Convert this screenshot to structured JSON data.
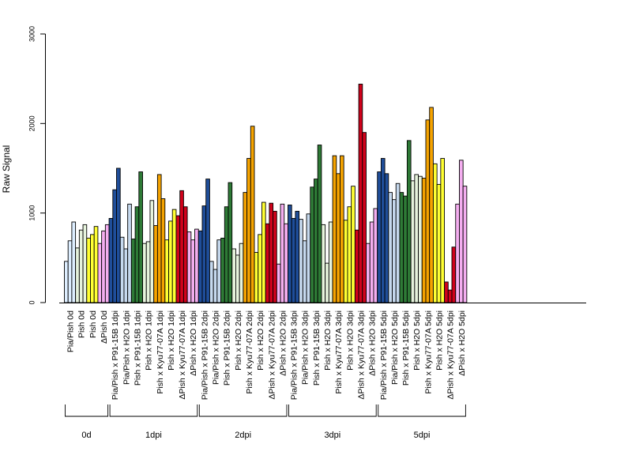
{
  "chart_data": {
    "type": "bar",
    "ylabel": "Raw Signal",
    "ylim": [
      0,
      3000
    ],
    "yticks": [
      0,
      1000,
      2000,
      3000
    ],
    "grid": false,
    "legend": "none",
    "series_colors": {
      "Pia/Pish": "#ddeeff",
      "Pia/Pish x P91-15B": "#1f4e9a",
      "Pia/Pish x H2O": "#c6d9ee",
      "Pish": "#e8f5e0",
      "Pish x P91-15B": "#2e7a36",
      "Pish x H2O": "#e6f3dc",
      "Pish x Kyu77-07A (Pish 0d)": "#ffff33",
      "Pish x Kyu77-07A": "#f5a300",
      "Pish x H2O (yellow)": "#ffff33",
      "ΔPish": "#f4aef0",
      "ΔPish x Kyu77-07A": "#d0021b",
      "ΔPish x H2O": "#f4aef0"
    },
    "categories": [
      {
        "label": "Pia/Pish 0d",
        "color": "#ddeeff",
        "values": [
          460,
          690,
          900
        ]
      },
      {
        "label": "Pish 0d",
        "color": "#e6f3dc",
        "values": [
          610,
          810,
          870
        ]
      },
      {
        "label": "Pish 0d",
        "color": "#ffff33",
        "values": [
          720,
          760,
          850
        ]
      },
      {
        "label": "ΔPish 0d",
        "color": "#f4aef0",
        "values": [
          660,
          800,
          870
        ]
      },
      {
        "label": "Pia/Pish x P91-15B 1dpi",
        "color": "#1f4e9a",
        "values": [
          940,
          1260,
          1500
        ]
      },
      {
        "label": "Pia/Pish x H2O 1dpi",
        "color": "#c6d9ee",
        "values": [
          730,
          600,
          1100
        ]
      },
      {
        "label": "Pish x P91-15B 1dpi",
        "color": "#2e7a36",
        "values": [
          710,
          1070,
          1460
        ]
      },
      {
        "label": "Pish x H2O 1dpi",
        "color": "#e6f3dc",
        "values": [
          660,
          680,
          1140
        ]
      },
      {
        "label": "Pish x Kyu77-07A 1dpi",
        "color": "#f5a300",
        "values": [
          860,
          1430,
          1160
        ]
      },
      {
        "label": "Pish x H2O 1dpi",
        "color": "#ffff33",
        "values": [
          700,
          910,
          1040
        ]
      },
      {
        "label": "ΔPish x Kyu77-07A 1dpi",
        "color": "#d0021b",
        "values": [
          970,
          1250,
          1070
        ]
      },
      {
        "label": "ΔPish x H2O 1dpi",
        "color": "#f4aef0",
        "values": [
          790,
          700,
          820
        ]
      },
      {
        "label": "Pia/Pish x P91-15B 2dpi",
        "color": "#1f4e9a",
        "values": [
          800,
          1080,
          1380
        ]
      },
      {
        "label": "Pia/Pish x H2O 2dpi",
        "color": "#c6d9ee",
        "values": [
          460,
          370,
          700
        ]
      },
      {
        "label": "Pish x P91-15B 2dpi",
        "color": "#2e7a36",
        "values": [
          720,
          1070,
          1340
        ]
      },
      {
        "label": "Pish x H2O 2dpi",
        "color": "#e6f3dc",
        "values": [
          600,
          530,
          660
        ]
      },
      {
        "label": "Pish x Kyu77-07A 2dpi",
        "color": "#f5a300",
        "values": [
          1230,
          1610,
          1970
        ]
      },
      {
        "label": "Pish x H2O 2dpi",
        "color": "#ffff33",
        "values": [
          560,
          760,
          1120
        ]
      },
      {
        "label": "ΔPish x Kyu77-07A 2dpi",
        "color": "#d0021b",
        "values": [
          880,
          1110,
          1020
        ]
      },
      {
        "label": "ΔPish x H2O 2dpi",
        "color": "#f4aef0",
        "values": [
          430,
          1100,
          880
        ]
      },
      {
        "label": "Pia/Pish x P91-15B 3dpi",
        "color": "#1f4e9a",
        "values": [
          1090,
          940,
          1020
        ]
      },
      {
        "label": "Pia/Pish x H2O 3dpi",
        "color": "#c6d9ee",
        "values": [
          930,
          690,
          990
        ]
      },
      {
        "label": "Pish x P91-15B 3dpi",
        "color": "#2e7a36",
        "values": [
          1290,
          1380,
          1760
        ]
      },
      {
        "label": "Pish x H2O 3dpi",
        "color": "#e6f3dc",
        "values": [
          870,
          440,
          900
        ]
      },
      {
        "label": "Pish x Kyu77-07A 3dpi",
        "color": "#f5a300",
        "values": [
          1640,
          1440,
          1640
        ]
      },
      {
        "label": "Pish x H2O 3dpi",
        "color": "#ffff33",
        "values": [
          920,
          1070,
          1300
        ]
      },
      {
        "label": "ΔPish x Kyu77-07A 3dpi",
        "color": "#d0021b",
        "values": [
          810,
          2440,
          1900
        ]
      },
      {
        "label": "ΔPish x H2O 3dpi",
        "color": "#f4aef0",
        "values": [
          660,
          900,
          1050
        ]
      },
      {
        "label": "Pia/Pish x P91-15B 5dpi",
        "color": "#1f4e9a",
        "values": [
          1460,
          1610,
          1440
        ]
      },
      {
        "label": "Pia/Pish x H2O 5dpi",
        "color": "#c6d9ee",
        "values": [
          1230,
          1150,
          1330
        ]
      },
      {
        "label": "Pish x P91-15B 5dpi",
        "color": "#2e7a36",
        "values": [
          1230,
          1190,
          1810
        ]
      },
      {
        "label": "Pish x H2O 5dpi",
        "color": "#e6f3dc",
        "values": [
          1360,
          1430,
          1410
        ]
      },
      {
        "label": "Pish x Kyu77-07A 5dpi",
        "color": "#f5a300",
        "values": [
          1390,
          2040,
          2180
        ]
      },
      {
        "label": "Pish x H2O 5dpi",
        "color": "#ffff33",
        "values": [
          1550,
          1320,
          1610
        ]
      },
      {
        "label": "ΔPish x Kyu77-07A 5dpi",
        "color": "#d0021b",
        "values": [
          230,
          140,
          620
        ]
      },
      {
        "label": "ΔPish x H2O 5dpi",
        "color": "#f4aef0",
        "values": [
          1100,
          1590,
          1300
        ]
      }
    ],
    "groups": [
      {
        "label": "0d",
        "from": 0,
        "to": 3
      },
      {
        "label": "1dpi",
        "from": 4,
        "to": 11
      },
      {
        "label": "2dpi",
        "from": 12,
        "to": 19
      },
      {
        "label": "3dpi",
        "from": 20,
        "to": 27
      },
      {
        "label": "5dpi",
        "from": 28,
        "to": 35
      }
    ]
  }
}
